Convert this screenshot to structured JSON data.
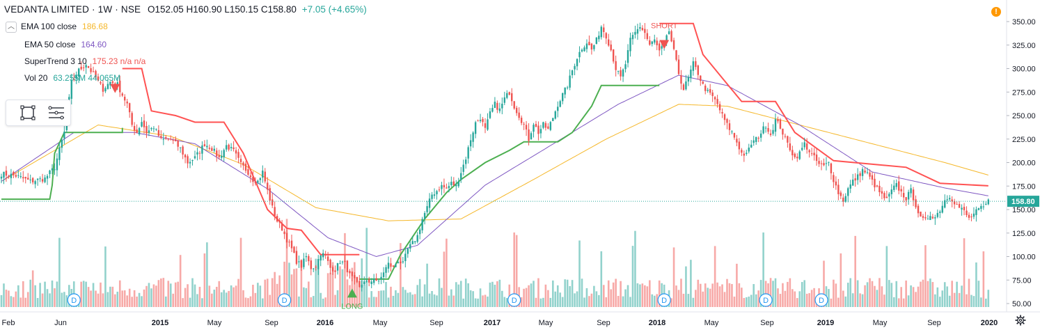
{
  "header": {
    "title": "VEDANTA LIMITED · 1W · NSE",
    "ohlc": "O152.05 H160.90 L150.15 C158.80",
    "change": "+7.05 (+4.65%)"
  },
  "legend": [
    {
      "name": "EMA 100 close",
      "value": "186.68",
      "color": "#f5b729"
    },
    {
      "name": "EMA 50 close",
      "value": "164.60",
      "color": "#7e57c2"
    },
    {
      "name": "SuperTrend 3 10",
      "value": "175.23  n/a  n/a",
      "color": "#ef5350"
    },
    {
      "name": "Vol 20",
      "value": "63.255M  44.065M",
      "color": "#26a69a"
    }
  ],
  "icons": {
    "collapse": "chevron-up-icon",
    "box": "rectangle-select-icon",
    "lines": "horizontal-lines-icon",
    "alert": "exclamation-icon",
    "settings": "gear-icon"
  },
  "alert_glyph": "!",
  "chart_data": {
    "type": "candlestick",
    "interval": "1W",
    "y_axis": {
      "ticks": [
        "350.00",
        "325.00",
        "300.00",
        "275.00",
        "250.00",
        "225.00",
        "200.00",
        "175.00",
        "150.00",
        "125.00",
        "100.00",
        "75.00",
        "50.00"
      ],
      "ylim": [
        45,
        357
      ],
      "side": "right"
    },
    "x_axis": {
      "ticks": [
        "Feb",
        "Jun",
        "2015",
        "May",
        "Sep",
        "2016",
        "May",
        "Sep",
        "2017",
        "May",
        "Sep",
        "2018",
        "May",
        "Sep",
        "2019",
        "May",
        "Sep",
        "2020"
      ]
    },
    "last_price": "158.80",
    "colors": {
      "up": "#26a69a",
      "down": "#ef5350",
      "ema100": "#f5b729",
      "ema50": "#7e57c2",
      "supertrend_up": "#4caf50",
      "supertrend_down": "#ff5252"
    },
    "close_path": [
      [
        0,
        188
      ],
      [
        6,
        186
      ],
      [
        12,
        180
      ],
      [
        18,
        183
      ],
      [
        22,
        195
      ],
      [
        26,
        232
      ],
      [
        29,
        285
      ],
      [
        32,
        298
      ],
      [
        35,
        305
      ],
      [
        39,
        290
      ],
      [
        42,
        278
      ],
      [
        45,
        286
      ],
      [
        48,
        283
      ],
      [
        50,
        272
      ],
      [
        52,
        262
      ],
      [
        54,
        240
      ],
      [
        56,
        232
      ],
      [
        58,
        244
      ],
      [
        60,
        232
      ],
      [
        63,
        238
      ],
      [
        66,
        224
      ],
      [
        70,
        225
      ],
      [
        74,
        215
      ],
      [
        77,
        200
      ],
      [
        80,
        205
      ],
      [
        84,
        220
      ],
      [
        87,
        215
      ],
      [
        90,
        205
      ],
      [
        93,
        218
      ],
      [
        96,
        212
      ],
      [
        99,
        198
      ],
      [
        102,
        190
      ],
      [
        104,
        182
      ],
      [
        106,
        180
      ],
      [
        108,
        190
      ],
      [
        110,
        170
      ],
      [
        112,
        152
      ],
      [
        114,
        138
      ],
      [
        116,
        130
      ],
      [
        118,
        118
      ],
      [
        120,
        108
      ],
      [
        122,
        95
      ],
      [
        124,
        90
      ],
      [
        126,
        100
      ],
      [
        128,
        88
      ],
      [
        130,
        90
      ],
      [
        132,
        104
      ],
      [
        134,
        100
      ],
      [
        136,
        88
      ],
      [
        138,
        86
      ],
      [
        140,
        95
      ],
      [
        142,
        92
      ],
      [
        144,
        80
      ],
      [
        146,
        74
      ],
      [
        148,
        66
      ],
      [
        150,
        75
      ],
      [
        152,
        70
      ],
      [
        154,
        78
      ],
      [
        156,
        72
      ],
      [
        158,
        84
      ],
      [
        160,
        92
      ],
      [
        162,
        88
      ],
      [
        164,
        96
      ],
      [
        166,
        92
      ],
      [
        168,
        108
      ],
      [
        170,
        114
      ],
      [
        172,
        122
      ],
      [
        174,
        140
      ],
      [
        176,
        152
      ],
      [
        178,
        166
      ],
      [
        180,
        170
      ],
      [
        182,
        175
      ],
      [
        184,
        172
      ],
      [
        186,
        178
      ],
      [
        188,
        175
      ],
      [
        190,
        190
      ],
      [
        192,
        205
      ],
      [
        194,
        225
      ],
      [
        196,
        242
      ],
      [
        198,
        248
      ],
      [
        200,
        235
      ],
      [
        202,
        252
      ],
      [
        204,
        262
      ],
      [
        206,
        256
      ],
      [
        208,
        268
      ],
      [
        210,
        275
      ],
      [
        212,
        260
      ],
      [
        214,
        250
      ],
      [
        216,
        240
      ],
      [
        218,
        225
      ],
      [
        220,
        242
      ],
      [
        222,
        232
      ],
      [
        224,
        240
      ],
      [
        226,
        235
      ],
      [
        228,
        248
      ],
      [
        230,
        262
      ],
      [
        232,
        272
      ],
      [
        234,
        282
      ],
      [
        236,
        298
      ],
      [
        238,
        312
      ],
      [
        240,
        322
      ],
      [
        242,
        328
      ],
      [
        244,
        320
      ],
      [
        246,
        330
      ],
      [
        248,
        345
      ],
      [
        250,
        335
      ],
      [
        252,
        320
      ],
      [
        254,
        300
      ],
      [
        256,
        290
      ],
      [
        258,
        305
      ],
      [
        260,
        330
      ],
      [
        262,
        338
      ],
      [
        264,
        345
      ],
      [
        266,
        338
      ],
      [
        268,
        325
      ],
      [
        270,
        330
      ],
      [
        272,
        318
      ],
      [
        274,
        325
      ],
      [
        276,
        340
      ],
      [
        278,
        318
      ],
      [
        280,
        295
      ],
      [
        282,
        278
      ],
      [
        284,
        290
      ],
      [
        286,
        305
      ],
      [
        288,
        295
      ],
      [
        290,
        282
      ],
      [
        292,
        275
      ],
      [
        294,
        270
      ],
      [
        296,
        262
      ],
      [
        298,
        250
      ],
      [
        300,
        240
      ],
      [
        302,
        232
      ],
      [
        304,
        222
      ],
      [
        306,
        210
      ],
      [
        308,
        208
      ],
      [
        310,
        220
      ],
      [
        312,
        225
      ],
      [
        314,
        232
      ],
      [
        316,
        240
      ],
      [
        318,
        230
      ],
      [
        320,
        245
      ],
      [
        322,
        238
      ],
      [
        324,
        225
      ],
      [
        326,
        215
      ],
      [
        328,
        205
      ],
      [
        330,
        210
      ],
      [
        332,
        220
      ],
      [
        334,
        212
      ],
      [
        336,
        205
      ],
      [
        338,
        198
      ],
      [
        340,
        196
      ],
      [
        342,
        200
      ],
      [
        344,
        182
      ],
      [
        346,
        168
      ],
      [
        348,
        160
      ],
      [
        350,
        172
      ],
      [
        352,
        180
      ],
      [
        354,
        185
      ],
      [
        356,
        192
      ],
      [
        358,
        188
      ],
      [
        360,
        180
      ],
      [
        362,
        172
      ],
      [
        364,
        165
      ],
      [
        366,
        160
      ],
      [
        368,
        170
      ],
      [
        370,
        176
      ],
      [
        372,
        168
      ],
      [
        374,
        162
      ],
      [
        376,
        170
      ],
      [
        378,
        155
      ],
      [
        380,
        140
      ],
      [
        382,
        138
      ],
      [
        384,
        145
      ],
      [
        386,
        142
      ],
      [
        388,
        150
      ],
      [
        390,
        160
      ],
      [
        392,
        165
      ],
      [
        394,
        158
      ],
      [
        396,
        152
      ],
      [
        398,
        148
      ],
      [
        400,
        140
      ],
      [
        402,
        145
      ],
      [
        404,
        150
      ],
      [
        406,
        152
      ],
      [
        408,
        158.8
      ]
    ],
    "ema100": [
      [
        0,
        180
      ],
      [
        40,
        240
      ],
      [
        70,
        228
      ],
      [
        100,
        198
      ],
      [
        130,
        152
      ],
      [
        160,
        138
      ],
      [
        190,
        140
      ],
      [
        220,
        182
      ],
      [
        250,
        225
      ],
      [
        280,
        262
      ],
      [
        300,
        260
      ],
      [
        330,
        240
      ],
      [
        360,
        220
      ],
      [
        390,
        200
      ],
      [
        408,
        186.68
      ]
    ],
    "ema50": [
      [
        0,
        180
      ],
      [
        30,
        232
      ],
      [
        55,
        232
      ],
      [
        80,
        220
      ],
      [
        110,
        172
      ],
      [
        135,
        120
      ],
      [
        155,
        100
      ],
      [
        172,
        112
      ],
      [
        200,
        176
      ],
      [
        225,
        215
      ],
      [
        255,
        262
      ],
      [
        280,
        293
      ],
      [
        300,
        282
      ],
      [
        330,
        240
      ],
      [
        360,
        190
      ],
      [
        390,
        173
      ],
      [
        408,
        164.6
      ]
    ],
    "supertrend": [
      {
        "trend": "up",
        "points": [
          [
            0,
            161
          ],
          [
            20,
            161
          ],
          [
            21,
            176
          ],
          [
            22,
            210
          ],
          [
            26,
            232
          ],
          [
            50,
            232
          ],
          [
            50,
            237
          ]
        ]
      },
      {
        "trend": "down",
        "points": [
          [
            50,
            300
          ],
          [
            58,
            300
          ],
          [
            62,
            255
          ],
          [
            72,
            250
          ],
          [
            80,
            243
          ],
          [
            92,
            243
          ],
          [
            100,
            210
          ],
          [
            110,
            150
          ],
          [
            118,
            130
          ],
          [
            124,
            128
          ],
          [
            132,
            102
          ],
          [
            148,
            102
          ]
        ]
      },
      {
        "trend": "up",
        "points": [
          [
            148,
            76
          ],
          [
            160,
            76
          ],
          [
            165,
            102
          ],
          [
            175,
            140
          ],
          [
            184,
            168
          ],
          [
            190,
            182
          ],
          [
            200,
            200
          ],
          [
            210,
            213
          ],
          [
            216,
            222
          ],
          [
            230,
            222
          ],
          [
            236,
            232
          ],
          [
            244,
            260
          ],
          [
            248,
            282
          ],
          [
            272,
            282
          ]
        ]
      },
      {
        "trend": "down",
        "points": [
          [
            272,
            348
          ],
          [
            286,
            348
          ],
          [
            290,
            315
          ],
          [
            298,
            290
          ],
          [
            306,
            265
          ],
          [
            320,
            265
          ],
          [
            328,
            232
          ],
          [
            344,
            202
          ],
          [
            374,
            195
          ],
          [
            388,
            178
          ],
          [
            408,
            175.23
          ]
        ]
      }
    ],
    "signals": [
      {
        "label": "SHORT",
        "x": 274,
        "price": 343
      },
      {
        "label": "LONG",
        "x": 145,
        "price": 66
      }
    ],
    "short_signal_unlabeled": {
      "x": 47,
      "price": 274
    },
    "dividend_markers": {
      "label": "D",
      "x": [
        30,
        117,
        212,
        274,
        316,
        339
      ]
    },
    "volume_scale_note": "volume bars share bottom pane, max ~127 scale units"
  }
}
